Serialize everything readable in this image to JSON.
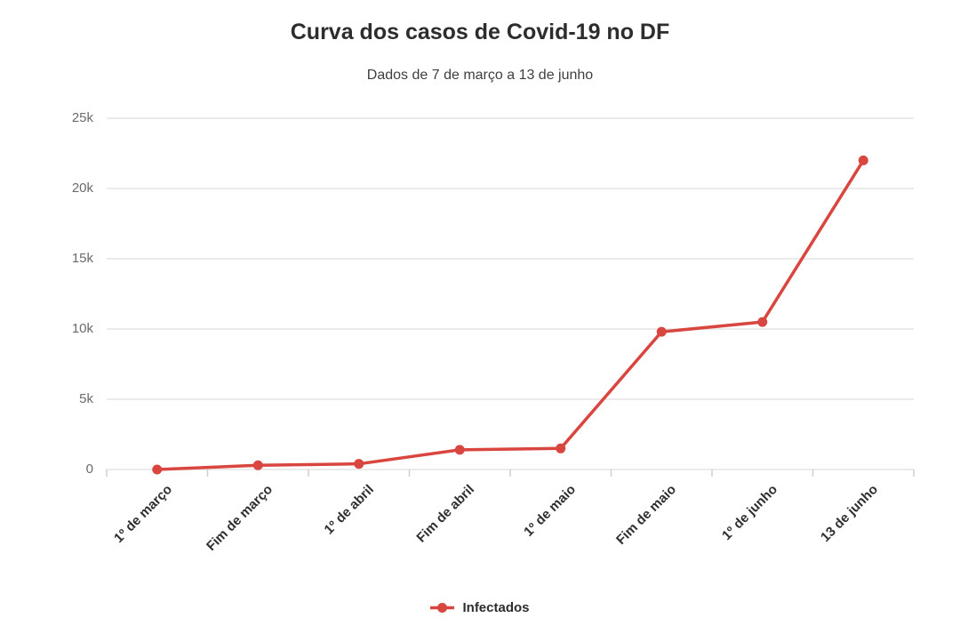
{
  "colors": {
    "background": "#ffffff",
    "series_red": "#d9453f",
    "title_text": "#2d2d2d",
    "subtitle_text": "#3f3f3f",
    "y_axis_label": "#6b6b6b",
    "x_axis_label": "#2f2f2f",
    "gridline": "#ebebeb",
    "axis_tick": "#cfcfcf"
  },
  "chart_data": {
    "type": "line",
    "title": "Curva dos casos de Covid-19 no DF",
    "subtitle": "Dados de 7 de março a 13 de junho",
    "categories": [
      "1º de março",
      "Fim de março",
      "1º de abril",
      "Fim de abril",
      "1º de maio",
      "Fim de maio",
      "1º de junho",
      "13 de junho"
    ],
    "series": [
      {
        "name": "Infectados",
        "color": "#d9453f",
        "marker": "circle",
        "values": [
          1,
          300,
          400,
          1400,
          1500,
          9800,
          10500,
          22000
        ]
      }
    ],
    "xlabel": "",
    "ylabel": "",
    "ylim": [
      0,
      25000
    ],
    "yticks": [
      {
        "value": 0,
        "label": "0"
      },
      {
        "value": 5000,
        "label": "5k"
      },
      {
        "value": 10000,
        "label": "10k"
      },
      {
        "value": 15000,
        "label": "15k"
      },
      {
        "value": 20000,
        "label": "20k"
      },
      {
        "value": 25000,
        "label": "25k"
      }
    ],
    "grid": true,
    "legend_position": "bottom"
  }
}
